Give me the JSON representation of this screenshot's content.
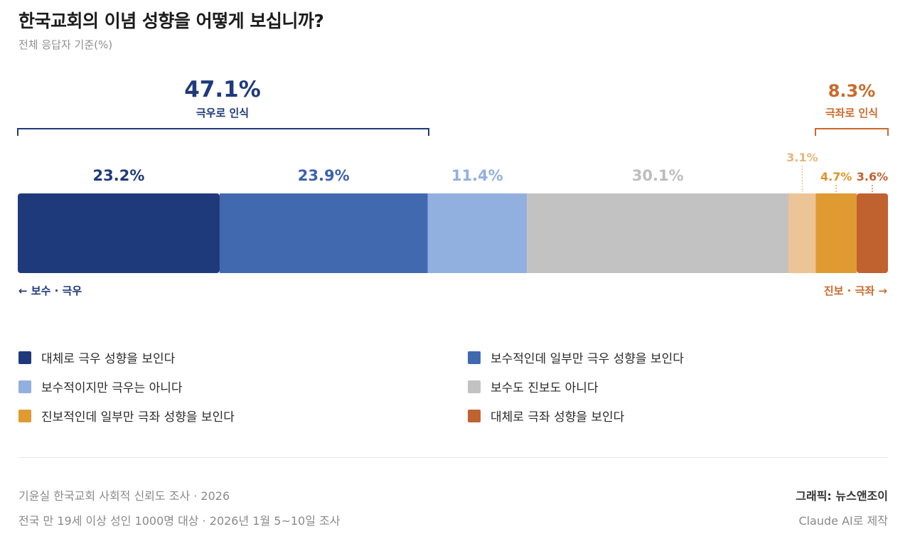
{
  "header": {
    "title": "한국교회의 이념 성향을 어떻게 보십니까?",
    "subtitle": "전체 응답자 기준(%)"
  },
  "callouts": {
    "right_wing": {
      "pct": "47.1%",
      "label": "극우로 인식",
      "color": "#1f3a7a"
    },
    "left_wing": {
      "pct": "8.3%",
      "label": "극좌로 인식",
      "color": "#c96a2c"
    }
  },
  "axis_labels": {
    "left": "← 보수 · 극우",
    "right": "진보 · 극좌 →"
  },
  "chart_data": {
    "type": "bar",
    "orientation": "horizontal-stacked",
    "unit": "%",
    "series": [
      {
        "name": "대체로 극우 성향을 보인다",
        "value": 23.2,
        "label": "23.2%",
        "color": "#1f3a7a",
        "label_color": "#1f3a7a"
      },
      {
        "name": "보수적인데 일부만 극우 성향을 보인다",
        "value": 23.9,
        "label": "23.9%",
        "color": "#4169b0",
        "label_color": "#3c62ab"
      },
      {
        "name": "보수적이지만 극우는 아니다",
        "value": 11.4,
        "label": "11.4%",
        "color": "#91b0df",
        "label_color": "#91b0df"
      },
      {
        "name": "보수도 진보도 아니다",
        "value": 30.1,
        "label": "30.1%",
        "color": "#c2c2c2",
        "label_color": "#bdbdbd"
      },
      {
        "name": "",
        "value": 3.1,
        "label": "3.1%",
        "color": "#edc495",
        "label_color": "#e5b57c"
      },
      {
        "name": "진보적인데 일부만 극좌 성향을 보인다",
        "value": 4.7,
        "label": "4.7%",
        "color": "#e09a32",
        "label_color": "#de9427"
      },
      {
        "name": "대체로 극좌 성향을 보인다",
        "value": 3.6,
        "label": "3.6%",
        "color": "#c0622f",
        "label_color": "#c0622f"
      }
    ]
  },
  "legend": [
    {
      "label": "대체로 극우 성향을 보인다",
      "color": "#1f3a7a"
    },
    {
      "label": "보수적인데 일부만 극우 성향을 보인다",
      "color": "#4169b0"
    },
    {
      "label": "보수적이지만 극우는 아니다",
      "color": "#91b0df"
    },
    {
      "label": "보수도 진보도 아니다",
      "color": "#c2c2c2"
    },
    {
      "label": "진보적인데 일부만 극좌 성향을 보인다",
      "color": "#e09a32"
    },
    {
      "label": "대체로 극좌 성향을 보인다",
      "color": "#c0622f"
    }
  ],
  "footer": {
    "source": "기윤실 한국교회 사회적 신뢰도 조사 · 2026",
    "method": "전국 만 19세 이상 성인 1000명 대상 · 2026년 1월 5~10일 조사",
    "credit": "그래픽: 뉴스앤조이",
    "made_with": "Claude AI로 제작"
  }
}
